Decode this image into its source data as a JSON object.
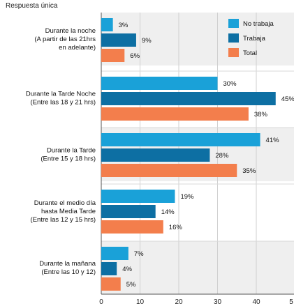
{
  "subtitle": "Respuesta única",
  "chart_data": {
    "type": "bar",
    "orientation": "horizontal",
    "categories": [
      [
        "Durante la noche",
        "(A partir de las 21hrs",
        "en adelante)"
      ],
      [
        "Durante la Tarde Noche",
        "(Entre las 18 y 21 hrs)"
      ],
      [
        "Durante la Tarde",
        "(Entre 15 y 18 hrs)"
      ],
      [
        "Durante el medio día",
        "hasta Media Tarde",
        "(Entre las 12 y 15 hrs)"
      ],
      [
        "Durante la mañana",
        "(Entre las 10 y 12)"
      ]
    ],
    "series": [
      {
        "name": "No trabaja",
        "color": "#1aa1d8",
        "values": [
          3,
          30,
          41,
          19,
          7
        ],
        "labels": [
          "3%",
          "30%",
          "41%",
          "19%",
          "7%"
        ]
      },
      {
        "name": "Trabaja",
        "color": "#0d6fa3",
        "values": [
          9,
          45,
          28,
          14,
          4
        ],
        "labels": [
          "9%",
          "45%",
          "28%",
          "14%",
          "4%"
        ]
      },
      {
        "name": "Total",
        "color": "#f37e4c",
        "values": [
          6,
          38,
          35,
          16,
          5
        ],
        "labels": [
          "6%",
          "38%",
          "35%",
          "16%",
          "5%"
        ]
      }
    ],
    "xticks": [
      "0",
      "10",
      "20",
      "30",
      "40",
      "5"
    ],
    "xlim": [
      0,
      50
    ],
    "grid": true,
    "legend": "top-right"
  }
}
